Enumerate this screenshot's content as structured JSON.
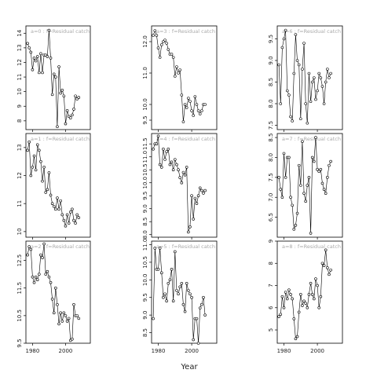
{
  "figure": {
    "xlabel": "Year"
  },
  "chart_data": [
    {
      "type": "scatter",
      "title": "a=0  :  f=Residual catch",
      "xlim": [
        1976,
        2015
      ],
      "ylim": [
        7.4,
        14.5
      ],
      "yticks": [
        8,
        9,
        10,
        11,
        12,
        13,
        14
      ],
      "xticks": [
        1980,
        2000
      ],
      "show_xticks": false,
      "x": [
        1977,
        1978,
        1979,
        1980,
        1981,
        1982,
        1983,
        1984,
        1985,
        1986,
        1987,
        1988,
        1989,
        1990,
        1991,
        1992,
        1993,
        1994,
        1995,
        1996,
        1997,
        1998,
        1999,
        2000,
        2001,
        2002,
        2003,
        2004,
        2005,
        2006,
        2007,
        2008
      ],
      "y": [
        13.3,
        13.0,
        12.7,
        11.5,
        12.3,
        12.1,
        12.4,
        11.3,
        12.6,
        11.3,
        12.5,
        12.5,
        12.4,
        14.2,
        12.3,
        9.8,
        11.2,
        11.0,
        7.6,
        11.7,
        9.9,
        10.1,
        9.7,
        7.8,
        8.7,
        8.3,
        8.2,
        8.4,
        8.8,
        9.7,
        9.5,
        9.6
      ]
    },
    {
      "type": "scatter",
      "title": "a=3  :  f=Residual catch",
      "xlim": [
        1976,
        2015
      ],
      "ylim": [
        9.2,
        12.5
      ],
      "yticks": [
        9.5,
        10.0,
        11.0,
        12.0
      ],
      "xticks": [
        1980,
        2000
      ],
      "show_xticks": false,
      "x": [
        1977,
        1978,
        1979,
        1980,
        1981,
        1982,
        1983,
        1984,
        1985,
        1986,
        1987,
        1988,
        1989,
        1990,
        1991,
        1992,
        1993,
        1994,
        1995,
        1996,
        1997,
        1998,
        1999,
        2000,
        2001,
        2002,
        2003,
        2004,
        2005,
        2006,
        2007,
        2008
      ],
      "y": [
        12.2,
        12.35,
        12.2,
        11.8,
        11.5,
        11.9,
        12.0,
        12.05,
        11.95,
        11.75,
        11.6,
        11.6,
        11.5,
        10.9,
        11.2,
        11.0,
        11.1,
        10.3,
        9.45,
        10.0,
        9.9,
        10.2,
        10.1,
        9.8,
        9.65,
        10.25,
        10.0,
        9.8,
        9.7,
        9.8,
        10.0,
        10.0
      ]
    },
    {
      "type": "scatter",
      "title": "a=6  :  f=Residual catch",
      "xlim": [
        1976,
        2015
      ],
      "ylim": [
        7.4,
        9.8
      ],
      "yticks": [
        7.5,
        8.0,
        8.5,
        9.0,
        9.5
      ],
      "xticks": [
        1980,
        2000
      ],
      "show_xticks": false,
      "x": [
        1977,
        1978,
        1979,
        1980,
        1981,
        1982,
        1983,
        1984,
        1985,
        1986,
        1987,
        1988,
        1989,
        1990,
        1991,
        1992,
        1993,
        1994,
        1995,
        1996,
        1997,
        1998,
        1999,
        2000,
        2001,
        2002,
        2003,
        2004,
        2005,
        2006,
        2007,
        2008
      ],
      "y": [
        8.9,
        8.0,
        9.3,
        9.5,
        9.7,
        8.3,
        8.2,
        7.7,
        7.6,
        8.7,
        9.6,
        9.0,
        8.9,
        7.65,
        8.8,
        9.4,
        8.0,
        7.55,
        8.7,
        8.05,
        8.5,
        8.6,
        8.1,
        8.3,
        8.7,
        8.6,
        8.4,
        8.0,
        8.5,
        8.8,
        8.6,
        8.7
      ]
    },
    {
      "type": "scatter",
      "title": "a=1  :  f=Residual catch",
      "xlim": [
        1976,
        2015
      ],
      "ylim": [
        9.8,
        13.5
      ],
      "yticks": [
        10.0,
        11.0,
        12.0,
        13.0
      ],
      "xticks": [
        1980,
        2000
      ],
      "show_xticks": false,
      "x": [
        1977,
        1978,
        1979,
        1980,
        1981,
        1982,
        1983,
        1984,
        1985,
        1986,
        1987,
        1988,
        1989,
        1990,
        1991,
        1992,
        1993,
        1994,
        1995,
        1996,
        1997,
        1998,
        1999,
        2000,
        2001,
        2002,
        2003,
        2004,
        2005,
        2006,
        2007,
        2008
      ],
      "y": [
        12.9,
        13.2,
        12.0,
        12.3,
        12.7,
        12.2,
        13.1,
        12.9,
        12.5,
        11.8,
        12.3,
        11.4,
        11.5,
        12.1,
        11.3,
        11.0,
        10.9,
        10.8,
        11.2,
        10.8,
        11.1,
        10.6,
        10.4,
        10.2,
        10.6,
        10.3,
        10.7,
        10.8,
        10.4,
        10.3,
        10.6,
        10.5
      ]
    },
    {
      "type": "scatter",
      "title": "a=4  :  f=Residual catch",
      "xlim": [
        1976,
        2015
      ],
      "ylim": [
        7.9,
        11.9
      ],
      "yticks": [
        8.0,
        8.5,
        9.0,
        9.5,
        10.0,
        10.5,
        11.0,
        11.5
      ],
      "xticks": [
        1980,
        2000
      ],
      "show_xticks": false,
      "x": [
        1977,
        1978,
        1979,
        1980,
        1981,
        1982,
        1983,
        1984,
        1985,
        1986,
        1987,
        1988,
        1989,
        1990,
        1991,
        1992,
        1993,
        1994,
        1995,
        1996,
        1997,
        1998,
        1999,
        2000,
        2001,
        2002,
        2003,
        2004,
        2005,
        2006,
        2007,
        2008
      ],
      "y": [
        11.3,
        11.5,
        11.5,
        11.8,
        10.7,
        10.6,
        11.3,
        10.9,
        11.2,
        11.3,
        10.7,
        10.8,
        10.5,
        10.9,
        10.7,
        10.5,
        10.2,
        10.0,
        10.4,
        10.3,
        10.6,
        8.1,
        8.3,
        9.5,
        8.6,
        9.4,
        9.2,
        9.5,
        9.8,
        9.7,
        9.6,
        9.7
      ]
    },
    {
      "type": "scatter",
      "title": "a=7  :  f=Residual catch",
      "xlim": [
        1976,
        2015
      ],
      "ylim": [
        6.0,
        8.6
      ],
      "yticks": [
        6.5,
        7.0,
        7.5,
        8.0,
        8.5
      ],
      "xticks": [
        1980,
        2000
      ],
      "show_xticks": false,
      "x": [
        1977,
        1978,
        1979,
        1980,
        1981,
        1982,
        1983,
        1984,
        1985,
        1986,
        1987,
        1988,
        1989,
        1990,
        1991,
        1992,
        1993,
        1994,
        1995,
        1996,
        1997,
        1998,
        1999,
        2000,
        2001,
        2002,
        2003,
        2004,
        2005,
        2006,
        2007,
        2008
      ],
      "y": [
        7.5,
        7.2,
        7.0,
        8.1,
        7.5,
        8.0,
        8.0,
        7.0,
        6.8,
        6.2,
        6.3,
        6.6,
        7.8,
        7.3,
        8.4,
        7.1,
        6.9,
        7.3,
        7.5,
        6.1,
        8.0,
        7.9,
        8.5,
        7.7,
        7.65,
        7.7,
        7.35,
        7.2,
        7.1,
        7.5,
        7.8,
        7.9
      ]
    },
    {
      "type": "scatter",
      "title": "a=2  :  f=Residual catch",
      "xlim": [
        1976,
        2015
      ],
      "ylim": [
        9.5,
        13.2
      ],
      "yticks": [
        9.5,
        10.5,
        11.5,
        12.5
      ],
      "xticks": [
        1980,
        2000
      ],
      "show_xticks": true,
      "x": [
        1977,
        1978,
        1979,
        1980,
        1981,
        1982,
        1983,
        1984,
        1985,
        1986,
        1987,
        1988,
        1989,
        1990,
        1991,
        1992,
        1993,
        1994,
        1995,
        1996,
        1997,
        1998,
        1999,
        2000,
        2001,
        2002,
        2003,
        2004,
        2005,
        2006,
        2007,
        2008
      ],
      "y": [
        12.7,
        13.0,
        12.9,
        11.9,
        11.7,
        11.9,
        11.8,
        12.0,
        12.7,
        12.6,
        13.1,
        12.0,
        12.1,
        11.9,
        11.7,
        11.1,
        10.6,
        11.5,
        10.9,
        10.2,
        10.6,
        10.3,
        10.6,
        10.5,
        10.3,
        10.4,
        9.6,
        9.65,
        10.9,
        10.5,
        10.5,
        10.4
      ]
    },
    {
      "type": "scatter",
      "title": "a=5  :  f=Residual catch",
      "xlim": [
        1976,
        2015
      ],
      "ylim": [
        8.2,
        11.1
      ],
      "yticks": [
        8.5,
        9.0,
        9.5,
        10.0,
        10.5,
        11.0
      ],
      "xticks": [
        1980,
        2000
      ],
      "show_xticks": true,
      "x": [
        1977,
        1978,
        1979,
        1980,
        1981,
        1982,
        1983,
        1984,
        1985,
        1986,
        1987,
        1988,
        1989,
        1990,
        1991,
        1992,
        1993,
        1994,
        1995,
        1996,
        1997,
        1998,
        1999,
        2000,
        2001,
        2002,
        2003,
        2004,
        2005,
        2006,
        2007,
        2008
      ],
      "y": [
        8.9,
        10.9,
        10.3,
        10.3,
        10.9,
        10.2,
        9.5,
        9.6,
        9.4,
        9.9,
        10.0,
        10.3,
        9.4,
        10.8,
        9.7,
        9.6,
        9.8,
        9.9,
        9.3,
        9.1,
        9.9,
        9.7,
        9.6,
        9.5,
        8.3,
        8.9,
        8.9,
        8.2,
        9.2,
        9.3,
        9.5,
        9.0
      ]
    },
    {
      "type": "scatter",
      "title": "a=8  :  f=Residual catch",
      "xlim": [
        1976,
        2015
      ],
      "ylim": [
        4.4,
        9.0
      ],
      "yticks": [
        5,
        6,
        7,
        8,
        9
      ],
      "xticks": [
        1980,
        2000
      ],
      "show_xticks": true,
      "x": [
        1977,
        1978,
        1979,
        1980,
        1981,
        1982,
        1983,
        1984,
        1985,
        1986,
        1987,
        1988,
        1989,
        1990,
        1991,
        1992,
        1993,
        1994,
        1995,
        1996,
        1997,
        1998,
        1999,
        2000,
        2001,
        2002,
        2003,
        2004,
        2005,
        2006,
        2007,
        2008
      ],
      "y": [
        5.6,
        5.7,
        6.5,
        6.0,
        6.7,
        6.4,
        6.8,
        6.6,
        6.4,
        5.5,
        4.6,
        4.7,
        5.8,
        6.6,
        6.1,
        6.3,
        6.2,
        6.0,
        6.6,
        7.1,
        6.6,
        6.4,
        7.3,
        7.0,
        6.0,
        6.5,
        8.0,
        7.9,
        8.6,
        7.8,
        7.5,
        7.7
      ]
    }
  ]
}
